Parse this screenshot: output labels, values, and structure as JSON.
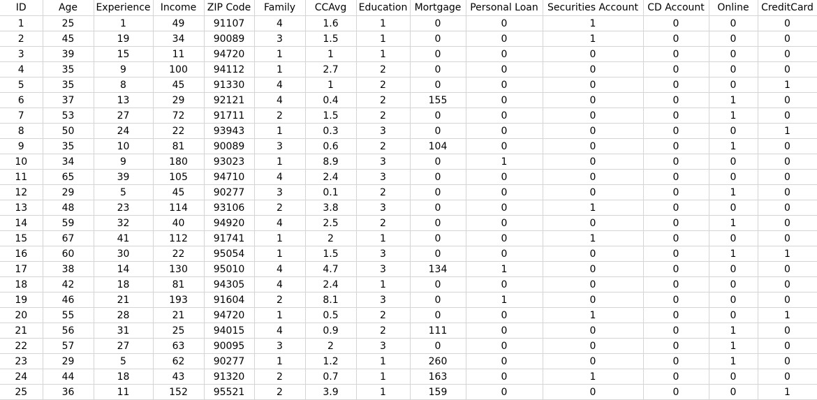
{
  "sheet": {
    "columns": [
      "ID",
      "Age",
      "Experience",
      "Income",
      "ZIP Code",
      "Family",
      "CCAvg",
      "Education",
      "Mortgage",
      "Personal Loan",
      "Securities Account",
      "CD Account",
      "Online",
      "CreditCard"
    ],
    "rows": [
      [
        "1",
        "25",
        "1",
        "49",
        "91107",
        "4",
        "1.6",
        "1",
        "0",
        "0",
        "1",
        "0",
        "0",
        "0"
      ],
      [
        "2",
        "45",
        "19",
        "34",
        "90089",
        "3",
        "1.5",
        "1",
        "0",
        "0",
        "1",
        "0",
        "0",
        "0"
      ],
      [
        "3",
        "39",
        "15",
        "11",
        "94720",
        "1",
        "1",
        "1",
        "0",
        "0",
        "0",
        "0",
        "0",
        "0"
      ],
      [
        "4",
        "35",
        "9",
        "100",
        "94112",
        "1",
        "2.7",
        "2",
        "0",
        "0",
        "0",
        "0",
        "0",
        "0"
      ],
      [
        "5",
        "35",
        "8",
        "45",
        "91330",
        "4",
        "1",
        "2",
        "0",
        "0",
        "0",
        "0",
        "0",
        "1"
      ],
      [
        "6",
        "37",
        "13",
        "29",
        "92121",
        "4",
        "0.4",
        "2",
        "155",
        "0",
        "0",
        "0",
        "1",
        "0"
      ],
      [
        "7",
        "53",
        "27",
        "72",
        "91711",
        "2",
        "1.5",
        "2",
        "0",
        "0",
        "0",
        "0",
        "1",
        "0"
      ],
      [
        "8",
        "50",
        "24",
        "22",
        "93943",
        "1",
        "0.3",
        "3",
        "0",
        "0",
        "0",
        "0",
        "0",
        "1"
      ],
      [
        "9",
        "35",
        "10",
        "81",
        "90089",
        "3",
        "0.6",
        "2",
        "104",
        "0",
        "0",
        "0",
        "1",
        "0"
      ],
      [
        "10",
        "34",
        "9",
        "180",
        "93023",
        "1",
        "8.9",
        "3",
        "0",
        "1",
        "0",
        "0",
        "0",
        "0"
      ],
      [
        "11",
        "65",
        "39",
        "105",
        "94710",
        "4",
        "2.4",
        "3",
        "0",
        "0",
        "0",
        "0",
        "0",
        "0"
      ],
      [
        "12",
        "29",
        "5",
        "45",
        "90277",
        "3",
        "0.1",
        "2",
        "0",
        "0",
        "0",
        "0",
        "1",
        "0"
      ],
      [
        "13",
        "48",
        "23",
        "114",
        "93106",
        "2",
        "3.8",
        "3",
        "0",
        "0",
        "1",
        "0",
        "0",
        "0"
      ],
      [
        "14",
        "59",
        "32",
        "40",
        "94920",
        "4",
        "2.5",
        "2",
        "0",
        "0",
        "0",
        "0",
        "1",
        "0"
      ],
      [
        "15",
        "67",
        "41",
        "112",
        "91741",
        "1",
        "2",
        "1",
        "0",
        "0",
        "1",
        "0",
        "0",
        "0"
      ],
      [
        "16",
        "60",
        "30",
        "22",
        "95054",
        "1",
        "1.5",
        "3",
        "0",
        "0",
        "0",
        "0",
        "1",
        "1"
      ],
      [
        "17",
        "38",
        "14",
        "130",
        "95010",
        "4",
        "4.7",
        "3",
        "134",
        "1",
        "0",
        "0",
        "0",
        "0"
      ],
      [
        "18",
        "42",
        "18",
        "81",
        "94305",
        "4",
        "2.4",
        "1",
        "0",
        "0",
        "0",
        "0",
        "0",
        "0"
      ],
      [
        "19",
        "46",
        "21",
        "193",
        "91604",
        "2",
        "8.1",
        "3",
        "0",
        "1",
        "0",
        "0",
        "0",
        "0"
      ],
      [
        "20",
        "55",
        "28",
        "21",
        "94720",
        "1",
        "0.5",
        "2",
        "0",
        "0",
        "1",
        "0",
        "0",
        "1"
      ],
      [
        "21",
        "56",
        "31",
        "25",
        "94015",
        "4",
        "0.9",
        "2",
        "111",
        "0",
        "0",
        "0",
        "1",
        "0"
      ],
      [
        "22",
        "57",
        "27",
        "63",
        "90095",
        "3",
        "2",
        "3",
        "0",
        "0",
        "0",
        "0",
        "1",
        "0"
      ],
      [
        "23",
        "29",
        "5",
        "62",
        "90277",
        "1",
        "1.2",
        "1",
        "260",
        "0",
        "0",
        "0",
        "1",
        "0"
      ],
      [
        "24",
        "44",
        "18",
        "43",
        "91320",
        "2",
        "0.7",
        "1",
        "163",
        "0",
        "1",
        "0",
        "0",
        "0"
      ],
      [
        "25",
        "36",
        "11",
        "152",
        "95521",
        "2",
        "3.9",
        "1",
        "159",
        "0",
        "0",
        "0",
        "0",
        "1"
      ]
    ]
  }
}
